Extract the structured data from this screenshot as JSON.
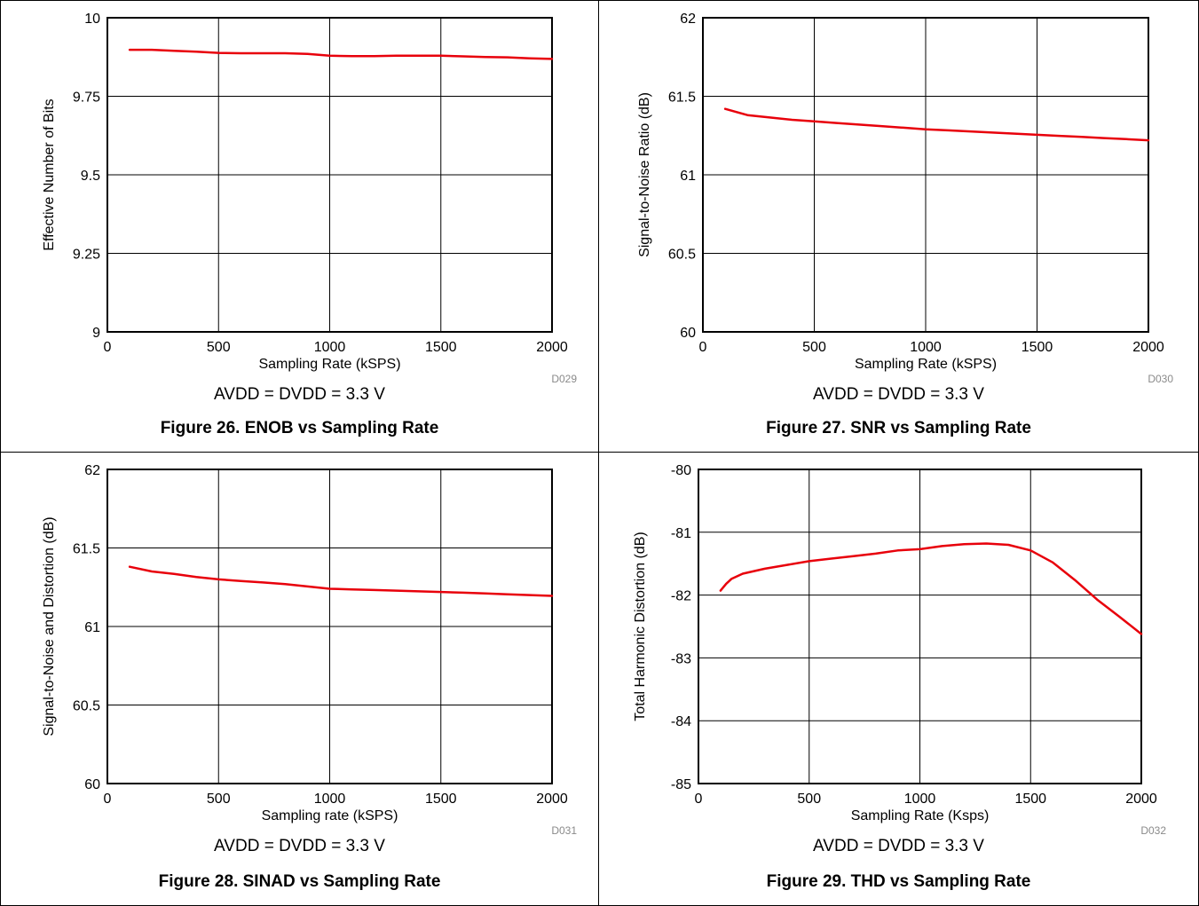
{
  "chart_data": [
    {
      "type": "line",
      "figure": "Figure 26. ENOB vs Sampling Rate",
      "condition": "AVDD = DVDD = 3.3 V",
      "xlabel": "Sampling Rate (kSPS)",
      "ylabel": "Effective Number of Bits",
      "doc_code": "D029",
      "xlim": [
        0,
        2000
      ],
      "ylim": [
        9,
        10
      ],
      "xticks": [
        0,
        500,
        1000,
        1500,
        2000
      ],
      "yticks": [
        9,
        9.25,
        9.5,
        9.75,
        10
      ],
      "ytick_labels": [
        "9",
        "9.25",
        "9.5",
        "9.75",
        "10"
      ],
      "grid": true,
      "line_color": "#e8000b",
      "series": [
        {
          "x": [
            100,
            200,
            300,
            400,
            500,
            600,
            700,
            800,
            900,
            1000,
            1100,
            1200,
            1300,
            1400,
            1500,
            1600,
            1700,
            1800,
            1900,
            2000
          ],
          "y": [
            9.898,
            9.898,
            9.895,
            9.892,
            9.888,
            9.887,
            9.887,
            9.887,
            9.885,
            9.879,
            9.878,
            9.878,
            9.879,
            9.879,
            9.879,
            9.877,
            9.875,
            9.874,
            9.871,
            9.869
          ]
        }
      ]
    },
    {
      "type": "line",
      "figure": "Figure 27. SNR vs Sampling Rate",
      "condition": "AVDD = DVDD = 3.3 V",
      "xlabel": "Sampling Rate (kSPS)",
      "ylabel": "Signal-to-Noise Ratio (dB)",
      "doc_code": "D030",
      "xlim": [
        0,
        2000
      ],
      "ylim": [
        60,
        62
      ],
      "xticks": [
        0,
        500,
        1000,
        1500,
        2000
      ],
      "yticks": [
        60,
        60.5,
        61,
        61.5,
        62
      ],
      "ytick_labels": [
        "60",
        "60.5",
        "61",
        "61.5",
        "62"
      ],
      "grid": true,
      "line_color": "#e8000b",
      "series": [
        {
          "x": [
            100,
            200,
            300,
            400,
            500,
            600,
            700,
            800,
            900,
            1000,
            1100,
            1200,
            1300,
            1400,
            1500,
            1600,
            1700,
            1800,
            1900,
            2000
          ],
          "y": [
            61.42,
            61.38,
            61.365,
            61.35,
            61.34,
            61.33,
            61.32,
            61.31,
            61.3,
            61.29,
            61.283,
            61.276,
            61.269,
            61.262,
            61.255,
            61.248,
            61.241,
            61.234,
            61.227,
            61.22
          ]
        }
      ]
    },
    {
      "type": "line",
      "figure": "Figure 28. SINAD vs Sampling Rate",
      "condition": "AVDD = DVDD = 3.3 V",
      "xlabel": "Sampling rate (kSPS)",
      "ylabel": "Signal-to-Noise and Distortion (dB)",
      "doc_code": "D031",
      "xlim": [
        0,
        2000
      ],
      "ylim": [
        60,
        62
      ],
      "xticks": [
        0,
        500,
        1000,
        1500,
        2000
      ],
      "yticks": [
        60,
        60.5,
        61,
        61.5,
        62
      ],
      "ytick_labels": [
        "60",
        "60.5",
        "61",
        "61.5",
        "62"
      ],
      "grid": true,
      "line_color": "#e8000b",
      "series": [
        {
          "x": [
            100,
            200,
            300,
            400,
            500,
            600,
            700,
            800,
            900,
            1000,
            1100,
            1200,
            1300,
            1400,
            1500,
            1600,
            1700,
            1800,
            1900,
            2000
          ],
          "y": [
            61.38,
            61.35,
            61.335,
            61.315,
            61.3,
            61.29,
            61.28,
            61.27,
            61.255,
            61.24,
            61.236,
            61.232,
            61.228,
            61.224,
            61.22,
            61.215,
            61.21,
            61.205,
            61.2,
            61.195
          ]
        }
      ]
    },
    {
      "type": "line",
      "figure": "Figure 29. THD vs Sampling Rate",
      "condition": "AVDD = DVDD = 3.3 V",
      "xlabel": "Sampling Rate (Ksps)",
      "ylabel": "Total Harmonic Distortion (dB)",
      "doc_code": "D032",
      "xlim": [
        0,
        2000
      ],
      "ylim": [
        -85,
        -80
      ],
      "xticks": [
        0,
        500,
        1000,
        1500,
        2000
      ],
      "yticks": [
        -85,
        -84,
        -83,
        -82,
        -81,
        -80
      ],
      "ytick_labels": [
        "-85",
        "-84",
        "-83",
        "-82",
        "-81",
        "-80"
      ],
      "grid": true,
      "line_color": "#e8000b",
      "series": [
        {
          "x": [
            100,
            125,
            150,
            200,
            300,
            400,
            500,
            600,
            700,
            800,
            900,
            1000,
            1100,
            1200,
            1300,
            1400,
            1500,
            1600,
            1700,
            1800,
            1900,
            2000
          ],
          "y": [
            -81.93,
            -81.82,
            -81.74,
            -81.66,
            -81.58,
            -81.52,
            -81.46,
            -81.42,
            -81.38,
            -81.34,
            -81.29,
            -81.27,
            -81.22,
            -81.19,
            -81.18,
            -81.2,
            -81.29,
            -81.48,
            -81.76,
            -82.07,
            -82.34,
            -82.62
          ]
        }
      ]
    }
  ]
}
